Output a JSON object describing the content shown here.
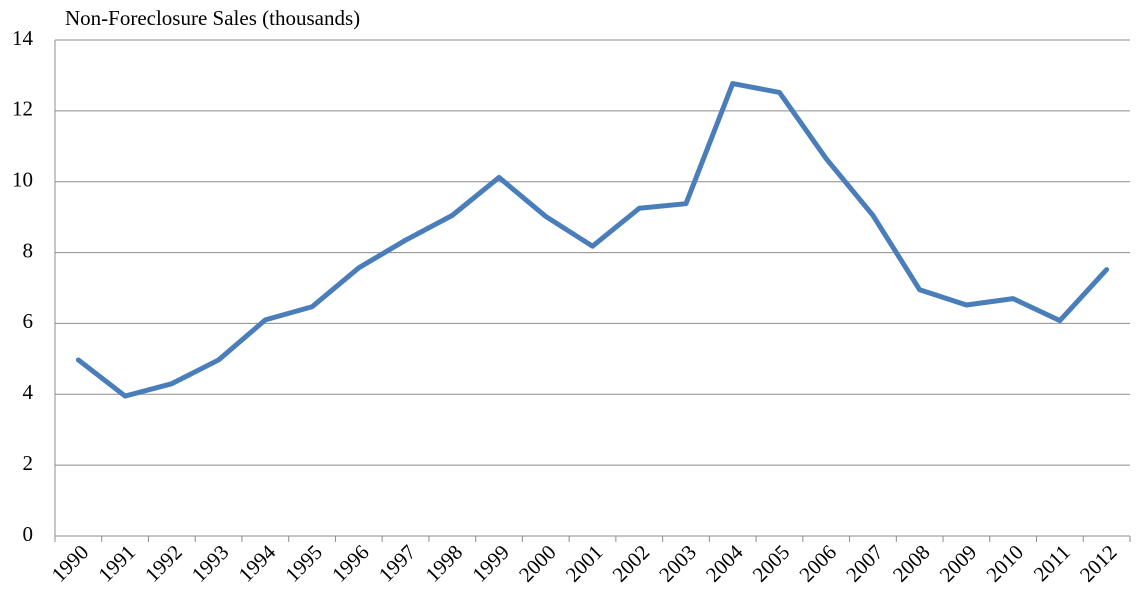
{
  "chart_data": {
    "type": "line",
    "title": "Non-Foreclosure Sales (thousands)",
    "categories": [
      "1990",
      "1991",
      "1992",
      "1993",
      "1994",
      "1995",
      "1996",
      "1997",
      "1998",
      "1999",
      "2000",
      "2001",
      "2002",
      "2003",
      "2004",
      "2005",
      "2006",
      "2007",
      "2008",
      "2009",
      "2010",
      "2011",
      "2012"
    ],
    "values": [
      4.97,
      3.95,
      4.3,
      4.97,
      6.1,
      6.47,
      7.57,
      8.35,
      9.05,
      10.12,
      9.02,
      8.18,
      9.25,
      9.38,
      12.77,
      12.52,
      10.65,
      9.05,
      6.95,
      6.52,
      6.7,
      6.08,
      7.52
    ],
    "color": "#4a7ebb",
    "ylim": [
      0,
      14
    ],
    "yticks": [
      0,
      2,
      4,
      6,
      8,
      10,
      12,
      14
    ],
    "grid": true
  }
}
